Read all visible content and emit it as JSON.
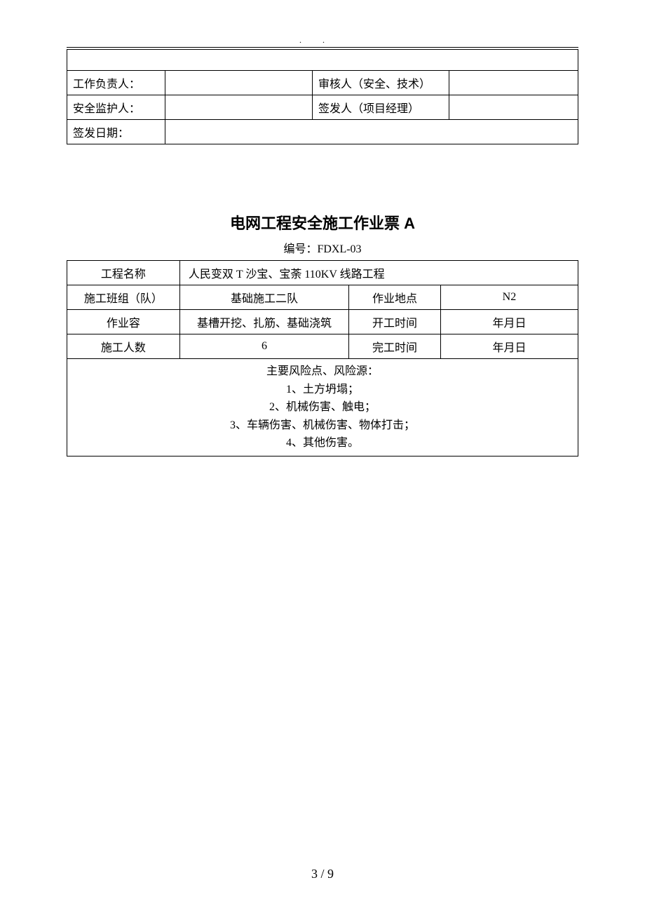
{
  "header": {
    "dot1": ".",
    "dot2": "."
  },
  "topTable": {
    "row1_label": "工作负责人：",
    "row1_label2": "审核人（安全、技术）",
    "row2_label": "安全监护人：",
    "row2_label2": "签发人（项目经理）",
    "row3_label": "签发日期："
  },
  "mainTitle": "电网工程安全施工作业票 A",
  "docNumber": "编号：FDXL-03",
  "mainTable": {
    "r1c1": "工程名称",
    "r1c2": "人民变双 T 沙宝、宝荼 110KV 线路工程",
    "r2c1": "施工班组（队）",
    "r2c2": "基础施工二队",
    "r2c3": "作业地点",
    "r2c4": "N2",
    "r3c1": "作业容",
    "r3c2": "基槽开挖、扎筋、基础浇筑",
    "r3c3": "开工时间",
    "r3c4": "年月日",
    "r4c1": "施工人数",
    "r4c2": "6",
    "r4c3": "完工时间",
    "r4c4": "年月日",
    "riskTitle": "主要风险点、风险源：",
    "risk1": "1、土方坍塌；",
    "risk2": "2、机械伤害、触电；",
    "risk3": "3、车辆伤害、机械伤害、物体打击；",
    "risk4": "4、其他伤害。"
  },
  "pageNumber": "3 / 9"
}
